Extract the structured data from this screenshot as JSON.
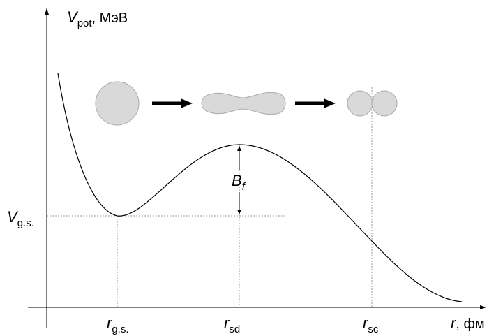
{
  "y_axis": {
    "symbol": "V",
    "subscript": "pot",
    "unit": ", МэВ"
  },
  "x_axis": {
    "symbol": "r",
    "unit": ", фм"
  },
  "ground_state_level": {
    "symbol": "V",
    "subscript": "g.s."
  },
  "barrier": {
    "symbol": "B",
    "subscript": "f"
  },
  "x_points": [
    {
      "symbol": "r",
      "subscript": "g.s."
    },
    {
      "symbol": "r",
      "subscript": "sd"
    },
    {
      "symbol": "r",
      "subscript": "sc"
    }
  ]
}
